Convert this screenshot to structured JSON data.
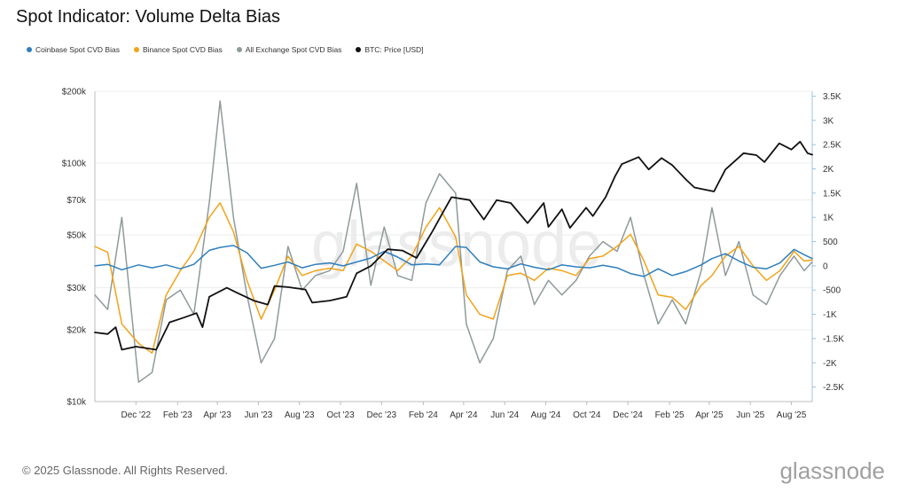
{
  "title": "Spot Indicator: Volume Delta Bias",
  "footer": "© 2025 Glassnode. All Rights Reserved.",
  "brand": "glassnode",
  "watermark": "glassnode",
  "chart_data": {
    "type": "line",
    "title": "Spot Indicator: Volume Delta Bias",
    "x_axis": {
      "type": "date",
      "range": [
        "2022-10-01",
        "2025-09-01"
      ],
      "ticks": [
        {
          "label": "Dec '22",
          "date": "2022-12-01"
        },
        {
          "label": "Feb '23",
          "date": "2023-02-01"
        },
        {
          "label": "Apr '23",
          "date": "2023-04-01"
        },
        {
          "label": "Jun '23",
          "date": "2023-06-01"
        },
        {
          "label": "Aug '23",
          "date": "2023-08-01"
        },
        {
          "label": "Oct '23",
          "date": "2023-10-01"
        },
        {
          "label": "Dec '23",
          "date": "2023-12-01"
        },
        {
          "label": "Feb '24",
          "date": "2024-02-01"
        },
        {
          "label": "Apr '24",
          "date": "2024-04-01"
        },
        {
          "label": "Jun '24",
          "date": "2024-06-01"
        },
        {
          "label": "Aug '24",
          "date": "2024-08-01"
        },
        {
          "label": "Oct '24",
          "date": "2024-10-01"
        },
        {
          "label": "Dec '24",
          "date": "2024-12-01"
        },
        {
          "label": "Feb '25",
          "date": "2025-02-01"
        },
        {
          "label": "Apr '25",
          "date": "2025-04-01"
        },
        {
          "label": "Jun '25",
          "date": "2025-06-01"
        },
        {
          "label": "Aug '25",
          "date": "2025-08-01"
        }
      ]
    },
    "y_left": {
      "scale": "log",
      "range": [
        10000,
        200000
      ],
      "ticks": [
        {
          "label": "$10k",
          "value": 10000
        },
        {
          "label": "$20k",
          "value": 20000
        },
        {
          "label": "$30k",
          "value": 30000
        },
        {
          "label": "$50k",
          "value": 50000
        },
        {
          "label": "$70k",
          "value": 70000
        },
        {
          "label": "$100k",
          "value": 100000
        },
        {
          "label": "$200k",
          "value": 200000
        }
      ]
    },
    "y_right": {
      "scale": "linear",
      "range": [
        -2800,
        3600
      ],
      "ticks": [
        {
          "label": "3.5K",
          "value": 3500
        },
        {
          "label": "3K",
          "value": 3000
        },
        {
          "label": "2.5K",
          "value": 2500
        },
        {
          "label": "2K",
          "value": 2000
        },
        {
          "label": "1.5K",
          "value": 1500
        },
        {
          "label": "1K",
          "value": 1000
        },
        {
          "label": "500",
          "value": 500
        },
        {
          "label": "0",
          "value": 0
        },
        {
          "label": "-500",
          "value": -500
        },
        {
          "label": "-1K",
          "value": -1000
        },
        {
          "label": "-1.5K",
          "value": -1500
        },
        {
          "label": "-2K",
          "value": -2000
        },
        {
          "label": "-2.5K",
          "value": -2500
        }
      ]
    },
    "grid": true,
    "legend_position": "top-left",
    "series": [
      {
        "name": "Coinbase Spot CVD Bias",
        "axis": "right",
        "color": "#2f7fbd",
        "points": [
          [
            "2022-10-01",
            0
          ],
          [
            "2022-10-20",
            30
          ],
          [
            "2022-11-10",
            -80
          ],
          [
            "2022-12-05",
            20
          ],
          [
            "2022-12-25",
            -40
          ],
          [
            "2023-01-15",
            20
          ],
          [
            "2023-02-05",
            -60
          ],
          [
            "2023-02-25",
            30
          ],
          [
            "2023-03-20",
            320
          ],
          [
            "2023-04-05",
            380
          ],
          [
            "2023-04-25",
            420
          ],
          [
            "2023-05-15",
            270
          ],
          [
            "2023-06-05",
            -50
          ],
          [
            "2023-06-25",
            10
          ],
          [
            "2023-07-15",
            80
          ],
          [
            "2023-08-05",
            -40
          ],
          [
            "2023-08-25",
            30
          ],
          [
            "2023-09-15",
            60
          ],
          [
            "2023-10-05",
            0
          ],
          [
            "2023-10-25",
            80
          ],
          [
            "2023-11-15",
            160
          ],
          [
            "2023-12-05",
            300
          ],
          [
            "2023-12-25",
            180
          ],
          [
            "2024-01-15",
            20
          ],
          [
            "2024-02-05",
            40
          ],
          [
            "2024-02-25",
            20
          ],
          [
            "2024-03-20",
            400
          ],
          [
            "2024-04-05",
            380
          ],
          [
            "2024-04-25",
            80
          ],
          [
            "2024-05-15",
            -20
          ],
          [
            "2024-06-05",
            -60
          ],
          [
            "2024-06-25",
            40
          ],
          [
            "2024-07-15",
            -30
          ],
          [
            "2024-08-05",
            -80
          ],
          [
            "2024-08-25",
            20
          ],
          [
            "2024-09-15",
            -20
          ],
          [
            "2024-10-05",
            -40
          ],
          [
            "2024-10-25",
            10
          ],
          [
            "2024-11-15",
            -40
          ],
          [
            "2024-12-05",
            -160
          ],
          [
            "2024-12-25",
            -220
          ],
          [
            "2025-01-15",
            -60
          ],
          [
            "2025-02-05",
            -200
          ],
          [
            "2025-02-25",
            -120
          ],
          [
            "2025-03-20",
            20
          ],
          [
            "2025-04-05",
            150
          ],
          [
            "2025-04-25",
            250
          ],
          [
            "2025-05-15",
            100
          ],
          [
            "2025-06-05",
            -30
          ],
          [
            "2025-06-25",
            -60
          ],
          [
            "2025-07-15",
            60
          ],
          [
            "2025-08-05",
            340
          ],
          [
            "2025-08-20",
            230
          ],
          [
            "2025-09-01",
            150
          ]
        ]
      },
      {
        "name": "Binance Spot CVD Bias",
        "axis": "right",
        "color": "#f2a318",
        "points": [
          [
            "2022-10-01",
            400
          ],
          [
            "2022-10-20",
            280
          ],
          [
            "2022-11-10",
            -1200
          ],
          [
            "2022-12-05",
            -1600
          ],
          [
            "2022-12-25",
            -1800
          ],
          [
            "2023-01-15",
            -600
          ],
          [
            "2023-02-05",
            -100
          ],
          [
            "2023-02-25",
            300
          ],
          [
            "2023-03-20",
            1000
          ],
          [
            "2023-04-05",
            1300
          ],
          [
            "2023-04-25",
            700
          ],
          [
            "2023-05-15",
            -300
          ],
          [
            "2023-06-05",
            -1100
          ],
          [
            "2023-06-25",
            -500
          ],
          [
            "2023-07-15",
            200
          ],
          [
            "2023-08-05",
            -200
          ],
          [
            "2023-08-25",
            -100
          ],
          [
            "2023-09-15",
            -50
          ],
          [
            "2023-10-05",
            -100
          ],
          [
            "2023-10-25",
            450
          ],
          [
            "2023-11-15",
            300
          ],
          [
            "2023-12-05",
            100
          ],
          [
            "2023-12-25",
            -100
          ],
          [
            "2024-01-15",
            200
          ],
          [
            "2024-02-05",
            800
          ],
          [
            "2024-02-25",
            1200
          ],
          [
            "2024-03-20",
            600
          ],
          [
            "2024-04-05",
            -600
          ],
          [
            "2024-04-25",
            -1000
          ],
          [
            "2024-05-15",
            -1100
          ],
          [
            "2024-06-05",
            -200
          ],
          [
            "2024-06-25",
            -150
          ],
          [
            "2024-07-15",
            -300
          ],
          [
            "2024-08-05",
            -50
          ],
          [
            "2024-08-25",
            -100
          ],
          [
            "2024-09-15",
            -200
          ],
          [
            "2024-10-05",
            150
          ],
          [
            "2024-10-25",
            200
          ],
          [
            "2024-11-15",
            400
          ],
          [
            "2024-12-05",
            650
          ],
          [
            "2024-12-25",
            100
          ],
          [
            "2025-01-15",
            -600
          ],
          [
            "2025-02-05",
            -650
          ],
          [
            "2025-02-25",
            -900
          ],
          [
            "2025-03-20",
            -400
          ],
          [
            "2025-04-05",
            -200
          ],
          [
            "2025-04-25",
            200
          ],
          [
            "2025-05-15",
            400
          ],
          [
            "2025-06-05",
            0
          ],
          [
            "2025-06-25",
            -300
          ],
          [
            "2025-07-15",
            -100
          ],
          [
            "2025-08-05",
            300
          ],
          [
            "2025-08-20",
            100
          ],
          [
            "2025-09-01",
            120
          ]
        ]
      },
      {
        "name": "All Exchange Spot CVD Bias",
        "axis": "right",
        "color": "#8f9a9a",
        "points": [
          [
            "2022-10-01",
            -600
          ],
          [
            "2022-10-20",
            -900
          ],
          [
            "2022-11-10",
            1000
          ],
          [
            "2022-12-05",
            -2400
          ],
          [
            "2022-12-25",
            -2200
          ],
          [
            "2023-01-15",
            -700
          ],
          [
            "2023-02-05",
            -500
          ],
          [
            "2023-02-25",
            -1000
          ],
          [
            "2023-03-20",
            1300
          ],
          [
            "2023-04-05",
            3400
          ],
          [
            "2023-04-25",
            1000
          ],
          [
            "2023-05-15",
            -600
          ],
          [
            "2023-06-05",
            -2000
          ],
          [
            "2023-06-25",
            -1500
          ],
          [
            "2023-07-15",
            400
          ],
          [
            "2023-08-05",
            -500
          ],
          [
            "2023-08-25",
            -200
          ],
          [
            "2023-09-15",
            -100
          ],
          [
            "2023-10-05",
            300
          ],
          [
            "2023-10-25",
            1700
          ],
          [
            "2023-11-15",
            -400
          ],
          [
            "2023-12-05",
            800
          ],
          [
            "2023-12-25",
            -200
          ],
          [
            "2024-01-15",
            -300
          ],
          [
            "2024-02-05",
            1300
          ],
          [
            "2024-02-25",
            1900
          ],
          [
            "2024-03-20",
            1500
          ],
          [
            "2024-04-05",
            -1200
          ],
          [
            "2024-04-25",
            -2000
          ],
          [
            "2024-05-15",
            -1500
          ],
          [
            "2024-06-05",
            -100
          ],
          [
            "2024-06-25",
            200
          ],
          [
            "2024-07-15",
            -800
          ],
          [
            "2024-08-05",
            -300
          ],
          [
            "2024-08-25",
            -600
          ],
          [
            "2024-09-15",
            -300
          ],
          [
            "2024-10-05",
            200
          ],
          [
            "2024-10-25",
            500
          ],
          [
            "2024-11-15",
            300
          ],
          [
            "2024-12-05",
            1000
          ],
          [
            "2024-12-25",
            -200
          ],
          [
            "2025-01-15",
            -1200
          ],
          [
            "2025-02-05",
            -700
          ],
          [
            "2025-02-25",
            -1200
          ],
          [
            "2025-03-20",
            -100
          ],
          [
            "2025-04-05",
            1200
          ],
          [
            "2025-04-25",
            -200
          ],
          [
            "2025-05-15",
            500
          ],
          [
            "2025-06-05",
            -600
          ],
          [
            "2025-06-25",
            -800
          ],
          [
            "2025-07-15",
            -200
          ],
          [
            "2025-08-05",
            200
          ],
          [
            "2025-08-20",
            -100
          ],
          [
            "2025-09-01",
            80
          ]
        ]
      },
      {
        "name": "BTC: Price [USD]",
        "axis": "left",
        "color": "#111111",
        "points": [
          [
            "2022-10-01",
            19500
          ],
          [
            "2022-10-20",
            19200
          ],
          [
            "2022-11-01",
            20500
          ],
          [
            "2022-11-10",
            16500
          ],
          [
            "2022-12-01",
            17000
          ],
          [
            "2022-12-31",
            16500
          ],
          [
            "2023-01-20",
            21500
          ],
          [
            "2023-02-10",
            22500
          ],
          [
            "2023-03-01",
            23500
          ],
          [
            "2023-03-10",
            20500
          ],
          [
            "2023-03-20",
            27500
          ],
          [
            "2023-04-15",
            30000
          ],
          [
            "2023-05-01",
            28500
          ],
          [
            "2023-05-25",
            26500
          ],
          [
            "2023-06-15",
            25500
          ],
          [
            "2023-06-25",
            30500
          ],
          [
            "2023-07-15",
            30200
          ],
          [
            "2023-08-10",
            29500
          ],
          [
            "2023-08-20",
            26000
          ],
          [
            "2023-09-15",
            26500
          ],
          [
            "2023-10-10",
            27500
          ],
          [
            "2023-10-25",
            34500
          ],
          [
            "2023-11-15",
            37000
          ],
          [
            "2023-12-10",
            43500
          ],
          [
            "2024-01-01",
            43000
          ],
          [
            "2024-01-22",
            40000
          ],
          [
            "2024-02-15",
            52000
          ],
          [
            "2024-03-01",
            62000
          ],
          [
            "2024-03-14",
            72000
          ],
          [
            "2024-04-10",
            70000
          ],
          [
            "2024-05-01",
            58000
          ],
          [
            "2024-05-20",
            70000
          ],
          [
            "2024-06-10",
            68000
          ],
          [
            "2024-07-05",
            56000
          ],
          [
            "2024-07-29",
            68000
          ],
          [
            "2024-08-05",
            54000
          ],
          [
            "2024-08-25",
            64000
          ],
          [
            "2024-09-06",
            53500
          ],
          [
            "2024-09-30",
            65000
          ],
          [
            "2024-10-10",
            60000
          ],
          [
            "2024-10-29",
            72000
          ],
          [
            "2024-11-12",
            88000
          ],
          [
            "2024-11-22",
            99000
          ],
          [
            "2024-12-17",
            106000
          ],
          [
            "2025-01-01",
            94000
          ],
          [
            "2025-01-20",
            105000
          ],
          [
            "2025-02-05",
            98000
          ],
          [
            "2025-02-26",
            85000
          ],
          [
            "2025-03-10",
            79000
          ],
          [
            "2025-04-08",
            76000
          ],
          [
            "2025-04-25",
            94000
          ],
          [
            "2025-05-22",
            110000
          ],
          [
            "2025-06-10",
            108000
          ],
          [
            "2025-06-22",
            101000
          ],
          [
            "2025-07-14",
            121000
          ],
          [
            "2025-08-01",
            114000
          ],
          [
            "2025-08-14",
            123000
          ],
          [
            "2025-08-25",
            110000
          ],
          [
            "2025-09-01",
            108500
          ]
        ]
      }
    ]
  }
}
